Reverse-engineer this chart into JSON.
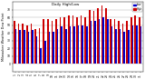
{
  "title": "Milwaukee Weather Dew Point",
  "subtitle": "Daily High/Low",
  "background_color": "#ffffff",
  "plot_bg_color": "#ffffff",
  "bar_width": 0.35,
  "ylim": [
    -10,
    80
  ],
  "yticks": [
    0,
    10,
    20,
    30,
    40,
    50,
    60,
    70
  ],
  "high_color": "#cc0000",
  "low_color": "#0000cc",
  "legend_high": "High",
  "legend_low": "Low",
  "days": [
    1,
    2,
    3,
    4,
    5,
    6,
    7,
    8,
    9,
    10,
    11,
    12,
    13,
    14,
    15,
    16,
    17,
    18,
    19,
    20,
    21,
    22,
    23,
    24,
    25,
    26,
    27,
    28,
    29,
    30,
    31
  ],
  "highs": [
    55,
    52,
    52,
    50,
    52,
    45,
    46,
    58,
    58,
    55,
    58,
    60,
    60,
    62,
    62,
    60,
    62,
    60,
    70,
    68,
    72,
    75,
    72,
    58,
    58,
    55,
    52,
    55,
    60,
    62,
    60
  ],
  "lows": [
    45,
    44,
    44,
    42,
    44,
    36,
    20,
    30,
    42,
    42,
    45,
    48,
    45,
    48,
    48,
    50,
    50,
    48,
    55,
    55,
    58,
    60,
    58,
    48,
    45,
    45,
    42,
    44,
    50,
    50,
    48
  ]
}
